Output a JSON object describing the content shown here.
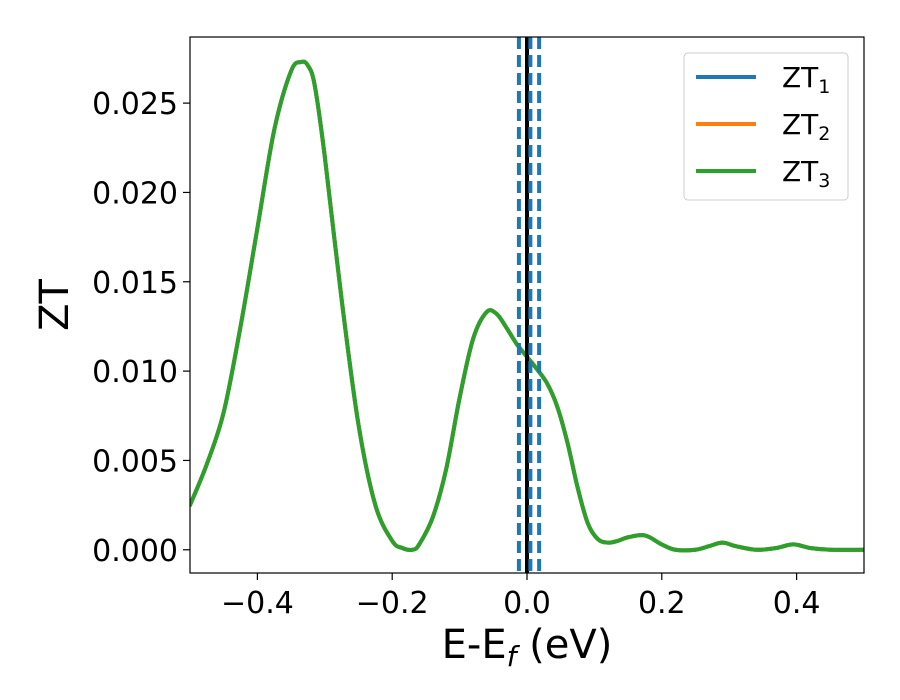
{
  "chart_data": {
    "type": "line",
    "title": "",
    "xlabel_main": "E-E",
    "xlabel_sub": "f",
    "xlabel_suffix": " (eV)",
    "ylabel": "ZT",
    "xlim": [
      -0.5,
      0.5
    ],
    "ylim": [
      -0.0013,
      0.0287
    ],
    "xticks": [
      -0.4,
      -0.2,
      0.0,
      0.2,
      0.4
    ],
    "xtick_labels": [
      "−0.4",
      "−0.2",
      "0.0",
      "0.2",
      "0.4"
    ],
    "yticks": [
      0.0,
      0.005,
      0.01,
      0.015,
      0.02,
      0.025
    ],
    "ytick_labels": [
      "0.000",
      "0.005",
      "0.010",
      "0.015",
      "0.020",
      "0.025"
    ],
    "grid": false,
    "legend_position": "top-right",
    "series": [
      {
        "name": "ZT",
        "sub": "1",
        "color": "#1f77b4"
      },
      {
        "name": "ZT",
        "sub": "2",
        "color": "#ff7f0e"
      },
      {
        "name": "ZT",
        "sub": "3",
        "color": "#2ca02c"
      }
    ],
    "x": [
      -0.5,
      -0.475,
      -0.45,
      -0.425,
      -0.4,
      -0.375,
      -0.35,
      -0.335,
      -0.325,
      -0.315,
      -0.3,
      -0.275,
      -0.25,
      -0.225,
      -0.2,
      -0.185,
      -0.17,
      -0.16,
      -0.14,
      -0.12,
      -0.1,
      -0.08,
      -0.06,
      -0.045,
      -0.03,
      -0.015,
      0.0,
      0.015,
      0.03,
      0.045,
      0.06,
      0.075,
      0.09,
      0.105,
      0.12,
      0.135,
      0.15,
      0.175,
      0.2,
      0.22,
      0.25,
      0.27,
      0.29,
      0.31,
      0.34,
      0.37,
      0.395,
      0.42,
      0.45,
      0.5
    ],
    "y": [
      0.0025,
      0.0048,
      0.0077,
      0.0125,
      0.018,
      0.0235,
      0.0268,
      0.0273,
      0.0271,
      0.026,
      0.022,
      0.014,
      0.007,
      0.0025,
      0.0005,
      0.0001,
      0.0,
      0.0003,
      0.0018,
      0.0045,
      0.0085,
      0.0118,
      0.0133,
      0.0132,
      0.0124,
      0.0115,
      0.0108,
      0.0101,
      0.0093,
      0.008,
      0.006,
      0.0035,
      0.0015,
      0.0006,
      0.0004,
      0.0005,
      0.0007,
      0.0008,
      0.0003,
      0.0,
      0.0,
      0.0002,
      0.0004,
      0.0002,
      0.0,
      0.0001,
      0.0003,
      0.0001,
      0.0,
      0.0
    ],
    "vlines": [
      {
        "x": 0.0,
        "color": "#000000",
        "style": "solid"
      },
      {
        "x": -0.012,
        "color": "#1f77b4",
        "style": "dashed"
      },
      {
        "x": 0.005,
        "color": "#1f77b4",
        "style": "dashed"
      },
      {
        "x": 0.018,
        "color": "#1f77b4",
        "style": "dashed"
      }
    ]
  }
}
